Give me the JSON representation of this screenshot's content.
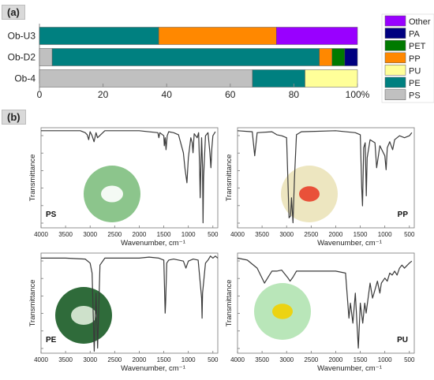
{
  "panel_labels": {
    "a": "(a)",
    "b": "(b)"
  },
  "colors": {
    "Other": "#9900ff",
    "PA": "#000080",
    "PET": "#007a00",
    "PP": "#ff8800",
    "PU": "#ffff99",
    "PE": "#008080",
    "PS": "#c0c0c0",
    "spectrum": "#3a3a3a"
  },
  "chart_data": [
    {
      "type": "bar",
      "orientation": "horizontal",
      "stacked": true,
      "categories": [
        "Ob-U3",
        "Ob-D2",
        "Ob-4"
      ],
      "series": [
        {
          "name": "PS",
          "values": [
            0,
            4,
            67
          ]
        },
        {
          "name": "PE",
          "values": [
            37.5,
            84,
            16.5
          ]
        },
        {
          "name": "PU",
          "values": [
            0,
            0,
            16.5
          ]
        },
        {
          "name": "PP",
          "values": [
            37,
            4,
            0
          ]
        },
        {
          "name": "PET",
          "values": [
            0,
            4,
            0
          ]
        },
        {
          "name": "PA",
          "values": [
            0,
            4,
            0
          ]
        },
        {
          "name": "Other",
          "values": [
            25.5,
            0,
            0
          ]
        }
      ],
      "xticks": [
        "0",
        "20",
        "40",
        "60",
        "80",
        "100%"
      ],
      "xlim": [
        0,
        100
      ],
      "legend_order": [
        "Other",
        "PA",
        "PET",
        "PP",
        "PU",
        "PE",
        "PS"
      ],
      "legend_position": "right"
    },
    {
      "type": "line",
      "name": "PS",
      "label": "PS",
      "xlabel": "Wavenumber,  cm⁻¹",
      "ylabel": "Transmittance",
      "xlim": [
        4000,
        400
      ],
      "xticks": [
        4000,
        3500,
        3000,
        2500,
        2000,
        1500,
        1000,
        500
      ],
      "x": [
        4000,
        3200,
        3100,
        3060,
        3030,
        3000,
        2960,
        2920,
        2880,
        2850,
        2700,
        2000,
        1620,
        1600,
        1580,
        1500,
        1490,
        1470,
        1455,
        1430,
        1400,
        1300,
        1200,
        1100,
        1070,
        1028,
        1000,
        950,
        920,
        905,
        880,
        850,
        820,
        790,
        770,
        758,
        745,
        730,
        710,
        700,
        690,
        650,
        600,
        560,
        540,
        520,
        500,
        450
      ],
      "y": [
        0.97,
        0.97,
        0.95,
        0.93,
        0.88,
        0.96,
        0.92,
        0.86,
        0.95,
        0.9,
        0.97,
        0.97,
        0.95,
        0.9,
        0.95,
        0.92,
        0.82,
        0.9,
        0.78,
        0.92,
        0.96,
        0.95,
        0.93,
        0.75,
        0.6,
        0.45,
        0.7,
        0.9,
        0.85,
        0.75,
        0.94,
        0.92,
        0.9,
        0.95,
        0.6,
        0.3,
        0.58,
        0.9,
        0.6,
        0.05,
        0.5,
        0.92,
        0.95,
        0.75,
        0.6,
        0.8,
        0.92,
        0.96
      ]
    },
    {
      "type": "line",
      "name": "PP",
      "label": "PP",
      "xlabel": "Wavenumber,  cm⁻¹",
      "ylabel": "Transmittance",
      "xlim": [
        4000,
        400
      ],
      "xticks": [
        4000,
        3500,
        3000,
        2500,
        2000,
        1500,
        1000,
        500
      ],
      "x": [
        4000,
        3700,
        3650,
        3600,
        3300,
        3200,
        3100,
        3000,
        2950,
        2920,
        2900,
        2870,
        2840,
        2800,
        2700,
        2000,
        1600,
        1500,
        1470,
        1455,
        1430,
        1400,
        1377,
        1360,
        1300,
        1200,
        1167,
        1100,
        1000,
        973,
        950,
        900,
        840,
        800,
        700,
        600,
        500,
        450
      ],
      "y": [
        0.97,
        0.96,
        0.72,
        0.95,
        0.96,
        0.93,
        0.92,
        0.9,
        0.1,
        0.12,
        0.3,
        0.05,
        0.5,
        0.93,
        0.96,
        0.97,
        0.95,
        0.93,
        0.4,
        0.22,
        0.8,
        0.85,
        0.32,
        0.7,
        0.88,
        0.85,
        0.6,
        0.82,
        0.72,
        0.58,
        0.8,
        0.86,
        0.78,
        0.88,
        0.92,
        0.9,
        0.92,
        0.95
      ]
    },
    {
      "type": "line",
      "name": "PE",
      "label": "PE",
      "xlabel": "Wavenumber,  cm⁻¹",
      "ylabel": "Transmittance",
      "xlim": [
        4000,
        400
      ],
      "xticks": [
        4000,
        3500,
        3000,
        2500,
        2000,
        1500,
        1000,
        500
      ],
      "x": [
        4000,
        3500,
        3100,
        3000,
        2960,
        2916,
        2880,
        2848,
        2800,
        2700,
        2000,
        1800,
        1600,
        1500,
        1472,
        1463,
        1440,
        1400,
        1300,
        1100,
        1050,
        1000,
        900,
        800,
        730,
        720,
        710,
        650,
        600,
        550,
        500,
        450,
        400
      ],
      "y": [
        0.95,
        0.95,
        0.94,
        0.9,
        0.8,
        0.02,
        0.6,
        0.05,
        0.88,
        0.95,
        0.95,
        0.96,
        0.95,
        0.93,
        0.4,
        0.5,
        0.9,
        0.93,
        0.94,
        0.92,
        0.85,
        0.92,
        0.94,
        0.93,
        0.55,
        0.35,
        0.6,
        0.9,
        0.93,
        0.97,
        0.95,
        0.97,
        0.95
      ]
    },
    {
      "type": "line",
      "name": "PU",
      "label": "PU",
      "xlabel": "Wavenumber,  cm⁻¹",
      "ylabel": "Transmittance",
      "xlim": [
        4000,
        400
      ],
      "xticks": [
        4000,
        3500,
        3000,
        2500,
        2000,
        1500,
        1000,
        500
      ],
      "x": [
        4000,
        3800,
        3600,
        3450,
        3350,
        3300,
        3200,
        3100,
        2970,
        2930,
        2870,
        2800,
        2600,
        2300,
        2000,
        1800,
        1730,
        1700,
        1650,
        1600,
        1540,
        1500,
        1450,
        1410,
        1380,
        1300,
        1250,
        1220,
        1150,
        1100,
        1070,
        1000,
        950,
        900,
        850,
        800,
        750,
        700,
        650,
        600,
        500,
        450
      ],
      "y": [
        0.95,
        0.93,
        0.85,
        0.7,
        0.78,
        0.82,
        0.82,
        0.83,
        0.75,
        0.72,
        0.76,
        0.82,
        0.82,
        0.82,
        0.82,
        0.8,
        0.35,
        0.5,
        0.3,
        0.6,
        0.05,
        0.5,
        0.3,
        0.5,
        0.4,
        0.7,
        0.55,
        0.6,
        0.72,
        0.6,
        0.7,
        0.75,
        0.72,
        0.8,
        0.78,
        0.82,
        0.78,
        0.85,
        0.88,
        0.85,
        0.9,
        0.92
      ]
    }
  ]
}
